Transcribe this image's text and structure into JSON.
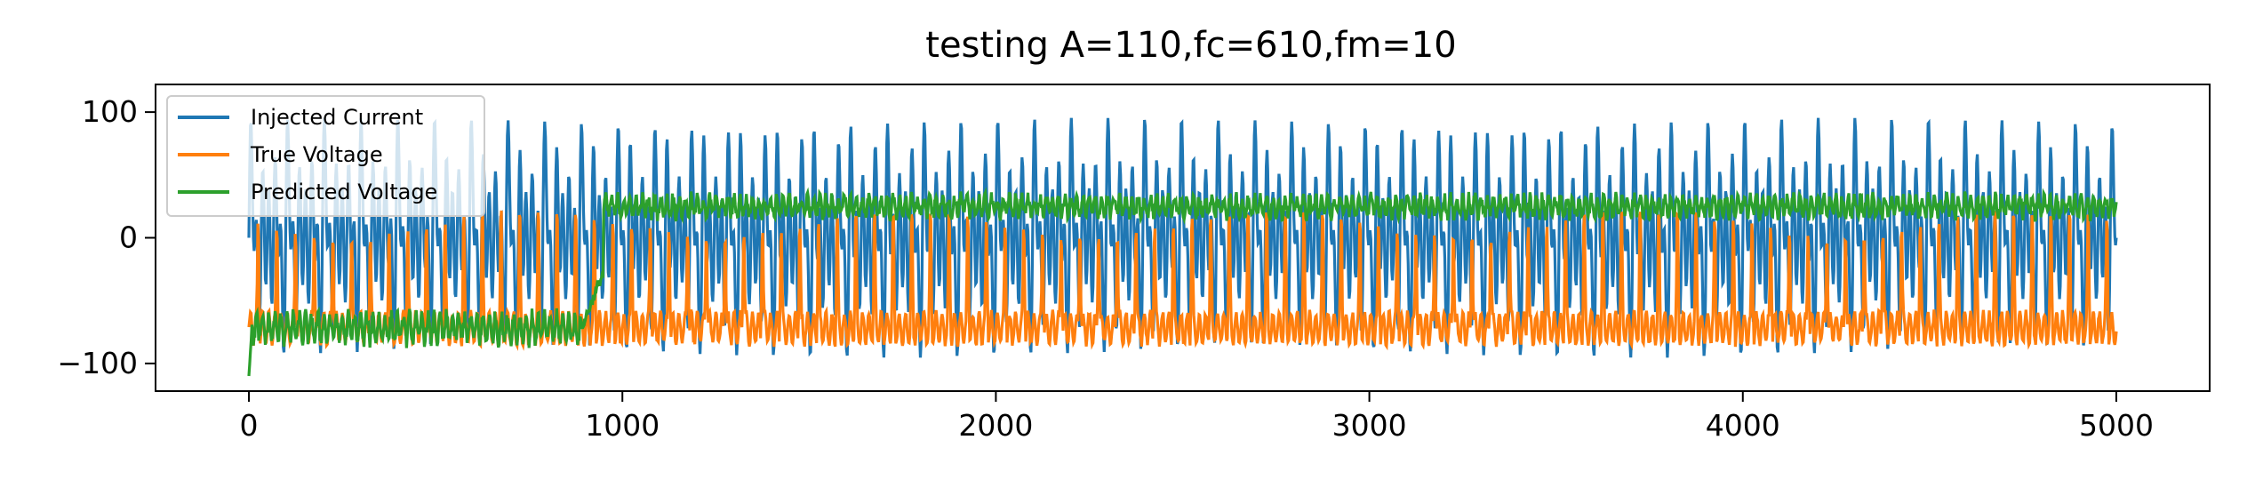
{
  "chart_data": {
    "type": "line",
    "title": "testing A=110,fc=610,fm=10",
    "xlabel": "",
    "ylabel": "",
    "xlim": [
      -250,
      5250
    ],
    "ylim": [
      -122,
      122
    ],
    "xticks": [
      0,
      1000,
      2000,
      3000,
      4000,
      5000
    ],
    "xtick_labels": [
      "0",
      "1000",
      "2000",
      "3000",
      "4000",
      "5000"
    ],
    "yticks": [
      -100,
      0,
      100
    ],
    "ytick_labels": [
      "−100",
      "0",
      "100"
    ],
    "grid": false,
    "legend_position": "upper-left",
    "n_points": 5000,
    "series": [
      {
        "name": "Injected Current",
        "color": "#1f77b4",
        "description_values": {
          "min": -110,
          "max": 110,
          "shape": "dense oscillation, amplitude 110, carrier ~61 cycles per 1000 samples, modulated"
        }
      },
      {
        "name": "True Voltage",
        "color": "#ff7f0e",
        "description_values": {
          "min": -95,
          "max": 37,
          "baseline": -72,
          "shape": "baseline around -72 with periodic spikes up to ~35"
        }
      },
      {
        "name": "Predicted Voltage",
        "color": "#2ca02c",
        "description_values": {
          "start": -110,
          "early_level": -72,
          "switch_at_x": 950,
          "late_level": 25,
          "late_range": [
            10,
            38
          ]
        }
      }
    ]
  }
}
